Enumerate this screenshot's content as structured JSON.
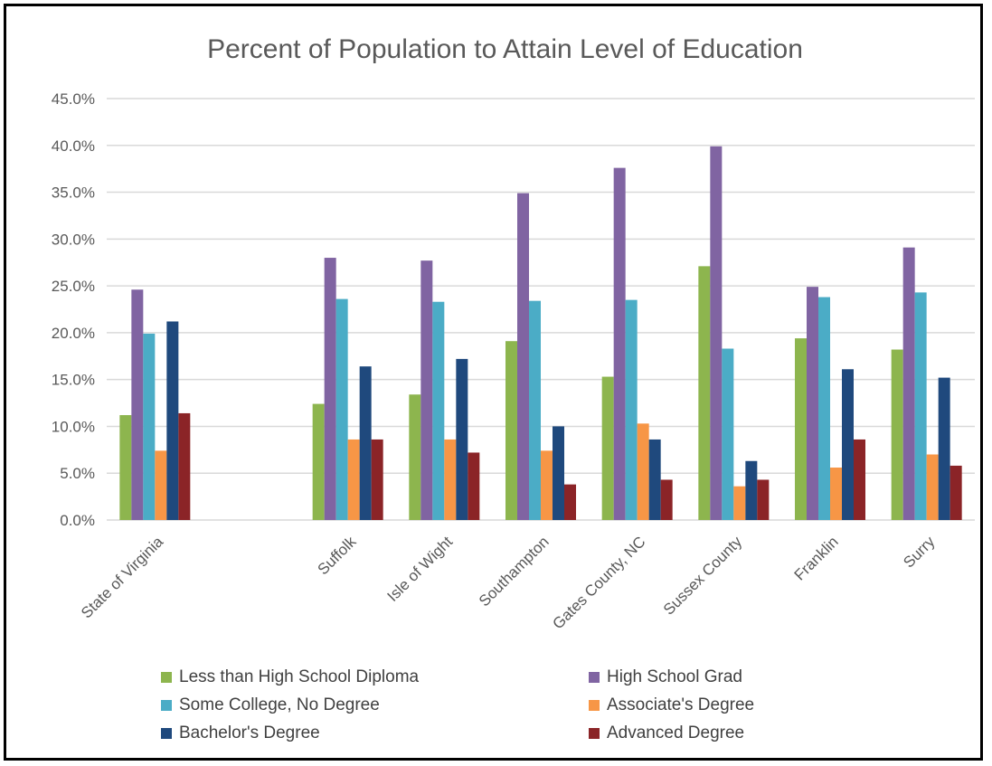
{
  "chart_data": {
    "type": "bar",
    "title": "Percent of Population to Attain Level of Education",
    "xlabel": "",
    "ylabel": "",
    "ylim": [
      0,
      45
    ],
    "yticks": [
      "0.0%",
      "5.0%",
      "10.0%",
      "15.0%",
      "20.0%",
      "25.0%",
      "30.0%",
      "35.0%",
      "40.0%",
      "45.0%"
    ],
    "grid": true,
    "legend_position": "bottom",
    "categories": [
      "State of Virginia",
      "",
      "Suffolk",
      "Isle of Wight",
      "Southampton",
      "Gates County, NC",
      "Sussex County",
      "Franklin",
      "Surry"
    ],
    "series": [
      {
        "name": "Less than High School Diploma",
        "color": "#8DB54E",
        "values": [
          11.2,
          null,
          12.4,
          13.4,
          19.1,
          15.3,
          27.1,
          19.4,
          18.2
        ]
      },
      {
        "name": "High School Grad",
        "color": "#8064A2",
        "values": [
          24.6,
          null,
          28.0,
          27.7,
          34.9,
          37.6,
          39.9,
          24.9,
          29.1
        ]
      },
      {
        "name": "Some College, No Degree",
        "color": "#4BACC6",
        "values": [
          19.9,
          null,
          23.6,
          23.3,
          23.4,
          23.5,
          18.3,
          23.8,
          24.3
        ]
      },
      {
        "name": "Associate's Degree",
        "color": "#F79646",
        "values": [
          7.4,
          null,
          8.6,
          8.6,
          7.4,
          10.3,
          3.6,
          5.6,
          7.0
        ]
      },
      {
        "name": "Bachelor's Degree",
        "color": "#1F497D",
        "values": [
          21.2,
          null,
          16.4,
          17.2,
          10.0,
          8.6,
          6.3,
          16.1,
          15.2
        ]
      },
      {
        "name": "Advanced Degree",
        "color": "#8B2427",
        "values": [
          11.4,
          null,
          8.6,
          7.2,
          3.8,
          4.3,
          4.3,
          8.6,
          5.8
        ]
      }
    ]
  }
}
